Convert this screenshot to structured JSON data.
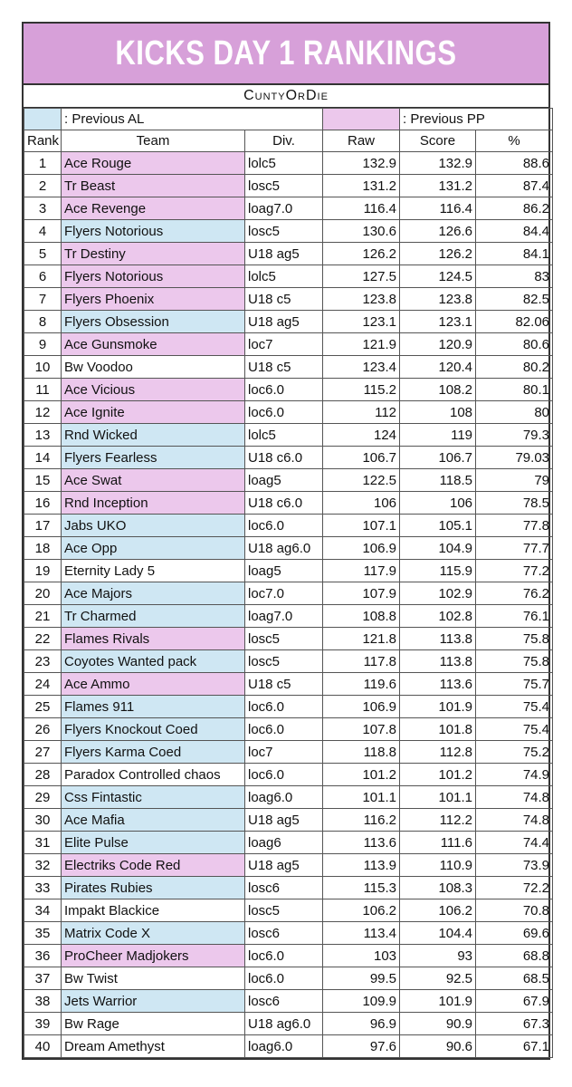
{
  "title": "KICKS DAY 1 RANKINGS",
  "subtitle": "CuntyOrDie",
  "colors": {
    "banner": "#d7a0d9",
    "previous_al": "#cfe7f3",
    "previous_pp": "#ecc8ec"
  },
  "legend": {
    "al_label": ": Previous AL",
    "pp_label": ": Previous PP"
  },
  "columns": [
    "Rank",
    "Team",
    "Div.",
    "Raw",
    "Score",
    "%"
  ],
  "rows": [
    {
      "rank": "1",
      "team": "Ace Rouge",
      "div": "lolc5",
      "raw": "132.9",
      "score": "132.9",
      "pct": "88.6",
      "mark": "pp"
    },
    {
      "rank": "2",
      "team": "Tr Beast",
      "div": "losc5",
      "raw": "131.2",
      "score": "131.2",
      "pct": "87.4",
      "mark": "pp"
    },
    {
      "rank": "3",
      "team": "Ace Revenge",
      "div": "loag7.0",
      "raw": "116.4",
      "score": "116.4",
      "pct": "86.2",
      "mark": "pp"
    },
    {
      "rank": "4",
      "team": "Flyers Notorious",
      "div": "losc5",
      "raw": "130.6",
      "score": "126.6",
      "pct": "84.4",
      "mark": "al"
    },
    {
      "rank": "5",
      "team": "Tr Destiny",
      "div": "U18 ag5",
      "raw": "126.2",
      "score": "126.2",
      "pct": "84.1",
      "mark": "pp"
    },
    {
      "rank": "6",
      "team": "Flyers Notorious",
      "div": "lolc5",
      "raw": "127.5",
      "score": "124.5",
      "pct": "83",
      "mark": "pp"
    },
    {
      "rank": "7",
      "team": "Flyers Phoenix",
      "div": "U18 c5",
      "raw": "123.8",
      "score": "123.8",
      "pct": "82.5",
      "mark": "pp"
    },
    {
      "rank": "8",
      "team": "Flyers Obsession",
      "div": "U18 ag5",
      "raw": "123.1",
      "score": "123.1",
      "pct": "82.06",
      "mark": "al"
    },
    {
      "rank": "9",
      "team": "Ace Gunsmoke",
      "div": "loc7",
      "raw": "121.9",
      "score": "120.9",
      "pct": "80.6",
      "mark": "pp"
    },
    {
      "rank": "10",
      "team": "Bw Voodoo",
      "div": "U18 c5",
      "raw": "123.4",
      "score": "120.4",
      "pct": "80.2",
      "mark": ""
    },
    {
      "rank": "11",
      "team": "Ace Vicious",
      "div": "loc6.0",
      "raw": "115.2",
      "score": "108.2",
      "pct": "80.1",
      "mark": "pp"
    },
    {
      "rank": "12",
      "team": "Ace Ignite",
      "div": "loc6.0",
      "raw": "112",
      "score": "108",
      "pct": "80",
      "mark": "pp"
    },
    {
      "rank": "13",
      "team": "Rnd Wicked",
      "div": "lolc5",
      "raw": "124",
      "score": "119",
      "pct": "79.3",
      "mark": "al"
    },
    {
      "rank": "14",
      "team": "Flyers Fearless",
      "div": "U18 c6.0",
      "raw": "106.7",
      "score": "106.7",
      "pct": "79.03",
      "mark": "al"
    },
    {
      "rank": "15",
      "team": "Ace Swat",
      "div": "loag5",
      "raw": "122.5",
      "score": "118.5",
      "pct": "79",
      "mark": "pp"
    },
    {
      "rank": "16",
      "team": "Rnd Inception",
      "div": "U18 c6.0",
      "raw": "106",
      "score": "106",
      "pct": "78.5",
      "mark": "pp"
    },
    {
      "rank": "17",
      "team": "Jabs UKO",
      "div": "loc6.0",
      "raw": "107.1",
      "score": "105.1",
      "pct": "77.8",
      "mark": "al"
    },
    {
      "rank": "18",
      "team": "Ace Opp",
      "div": "U18 ag6.0",
      "raw": "106.9",
      "score": "104.9",
      "pct": "77.7",
      "mark": "al"
    },
    {
      "rank": "19",
      "team": "Eternity Lady 5",
      "div": "loag5",
      "raw": "117.9",
      "score": "115.9",
      "pct": "77.2",
      "mark": ""
    },
    {
      "rank": "20",
      "team": "Ace Majors",
      "div": "loc7.0",
      "raw": "107.9",
      "score": "102.9",
      "pct": "76.2",
      "mark": "al"
    },
    {
      "rank": "21",
      "team": "Tr Charmed",
      "div": "loag7.0",
      "raw": "108.8",
      "score": "102.8",
      "pct": "76.1",
      "mark": "al"
    },
    {
      "rank": "22",
      "team": "Flames Rivals",
      "div": "losc5",
      "raw": "121.8",
      "score": "113.8",
      "pct": "75.8",
      "mark": "pp"
    },
    {
      "rank": "23",
      "team": "Coyotes Wanted pack",
      "div": "losc5",
      "raw": "117.8",
      "score": "113.8",
      "pct": "75.8",
      "mark": "al"
    },
    {
      "rank": "24",
      "team": "Ace Ammo",
      "div": "U18 c5",
      "raw": "119.6",
      "score": "113.6",
      "pct": "75.7",
      "mark": "pp"
    },
    {
      "rank": "25",
      "team": "Flames 911",
      "div": "loc6.0",
      "raw": "106.9",
      "score": "101.9",
      "pct": "75.4",
      "mark": "al"
    },
    {
      "rank": "26",
      "team": "Flyers Knockout Coed",
      "div": "loc6.0",
      "raw": "107.8",
      "score": "101.8",
      "pct": "75.4",
      "mark": "al"
    },
    {
      "rank": "27",
      "team": "Flyers Karma Coed",
      "div": "loc7",
      "raw": "118.8",
      "score": "112.8",
      "pct": "75.2",
      "mark": "al"
    },
    {
      "rank": "28",
      "team": "Paradox Controlled chaos",
      "div": "loc6.0",
      "raw": "101.2",
      "score": "101.2",
      "pct": "74.9",
      "mark": ""
    },
    {
      "rank": "29",
      "team": "Css Fintastic",
      "div": "loag6.0",
      "raw": "101.1",
      "score": "101.1",
      "pct": "74.8",
      "mark": "al"
    },
    {
      "rank": "30",
      "team": "Ace Mafia",
      "div": "U18 ag5",
      "raw": "116.2",
      "score": "112.2",
      "pct": "74.8",
      "mark": "al"
    },
    {
      "rank": "31",
      "team": "Elite Pulse",
      "div": "loag6",
      "raw": "113.6",
      "score": "111.6",
      "pct": "74.4",
      "mark": "al"
    },
    {
      "rank": "32",
      "team": "Electriks Code Red",
      "div": "U18 ag5",
      "raw": "113.9",
      "score": "110.9",
      "pct": "73.9",
      "mark": "pp"
    },
    {
      "rank": "33",
      "team": "Pirates Rubies",
      "div": "losc6",
      "raw": "115.3",
      "score": "108.3",
      "pct": "72.2",
      "mark": "al"
    },
    {
      "rank": "34",
      "team": "Impakt Blackice",
      "div": "losc5",
      "raw": "106.2",
      "score": "106.2",
      "pct": "70.8",
      "mark": ""
    },
    {
      "rank": "35",
      "team": "Matrix Code X",
      "div": "losc6",
      "raw": "113.4",
      "score": "104.4",
      "pct": "69.6",
      "mark": "al"
    },
    {
      "rank": "36",
      "team": "ProCheer Madjokers",
      "div": "loc6.0",
      "raw": "103",
      "score": "93",
      "pct": "68.8",
      "mark": "pp"
    },
    {
      "rank": "37",
      "team": "Bw Twist",
      "div": "loc6.0",
      "raw": "99.5",
      "score": "92.5",
      "pct": "68.5",
      "mark": ""
    },
    {
      "rank": "38",
      "team": "Jets Warrior",
      "div": "losc6",
      "raw": "109.9",
      "score": "101.9",
      "pct": "67.9",
      "mark": "al"
    },
    {
      "rank": "39",
      "team": "Bw Rage",
      "div": "U18 ag6.0",
      "raw": "96.9",
      "score": "90.9",
      "pct": "67.3",
      "mark": ""
    },
    {
      "rank": "40",
      "team": "Dream Amethyst",
      "div": "loag6.0",
      "raw": "97.6",
      "score": "90.6",
      "pct": "67.1",
      "mark": ""
    }
  ]
}
